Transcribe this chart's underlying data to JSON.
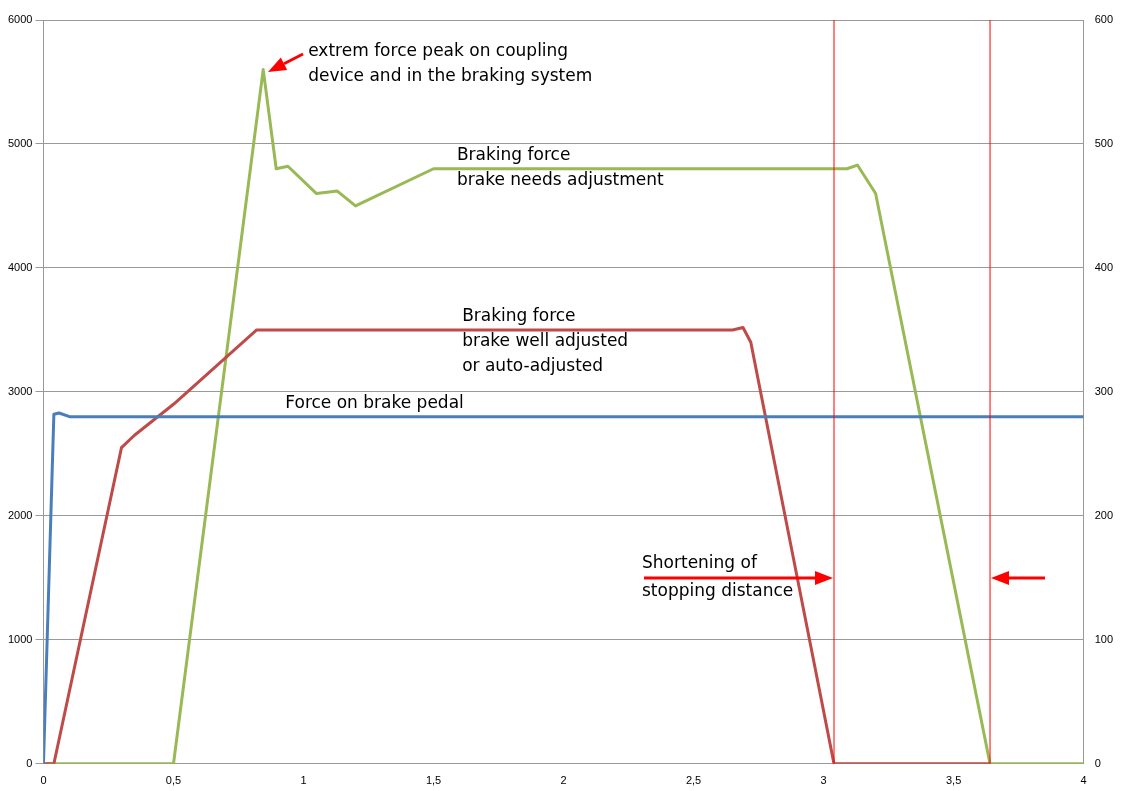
{
  "chart_data": {
    "type": "line",
    "series": [
      {
        "color": "#4a7ebb",
        "x": [
          0,
          0.04,
          0.06,
          0.1,
          4
        ],
        "values": [
          0,
          2820,
          2830,
          2800,
          2800
        ]
      },
      {
        "color": "#be4b48",
        "x": [
          0,
          0.04,
          0.3,
          0.35,
          0.5,
          0.82,
          2.65,
          2.69,
          2.72,
          3.04,
          3.64
        ],
        "values": [
          0,
          0,
          2550,
          2650,
          2900,
          3500,
          3500,
          3520,
          3400,
          0,
          0
        ]
      },
      {
        "color": "#98b954",
        "x": [
          0,
          0.5,
          0.845,
          0.895,
          0.94,
          1.05,
          1.13,
          1.2,
          1.5,
          3.09,
          3.13,
          3.2,
          3.64,
          4
        ],
        "values": [
          0,
          0,
          5600,
          4800,
          4820,
          4600,
          4620,
          4500,
          4800,
          4800,
          4830,
          4600,
          0,
          0
        ]
      }
    ],
    "xlim": [
      0,
      4
    ],
    "xticks": [
      0,
      {
        "value": 0.5,
        "label": "0,5"
      },
      1,
      {
        "value": 1.5,
        "label": "1,5"
      },
      2,
      {
        "value": 2.5,
        "label": "2,5"
      },
      3,
      {
        "value": 3.5,
        "label": "3,5"
      },
      4
    ],
    "ylim": [
      0,
      6000
    ],
    "yticks": [
      0,
      1000,
      2000,
      3000,
      4000,
      5000,
      6000
    ],
    "y2lim": [
      0,
      600
    ],
    "y2ticks": [
      0,
      100,
      200,
      300,
      400,
      500,
      600
    ],
    "grid": "y",
    "marker": "none",
    "line_style": "solid",
    "legend": false,
    "ref_lines": [
      {
        "axis": "x",
        "value": 3.04,
        "color": "#ff0000"
      },
      {
        "axis": "x",
        "value": 3.64,
        "color": "#ff0000"
      }
    ],
    "annotations": [
      {
        "text": "extrem force peak on coupling\ndevice and in the braking system",
        "x": 0.845,
        "y": 5600
      },
      {
        "text": "Braking force\nbrake needs adjustment",
        "x": 1.59,
        "y": 4800
      },
      {
        "text": "Braking force\nbrake well adjusted\nor auto-adjusted",
        "x": 1.61,
        "y": 3500
      },
      {
        "text": "Force on brake pedal",
        "x": 0.93,
        "y": 2800
      },
      "Shortening of\nstopping distance"
    ]
  }
}
